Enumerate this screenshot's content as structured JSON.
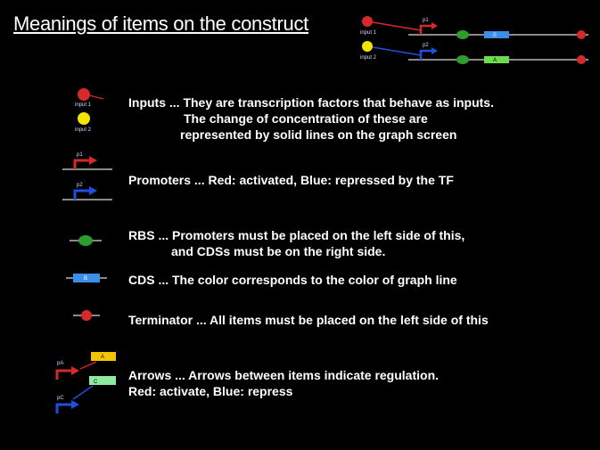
{
  "title": "Meanings of items on the construct",
  "construct_diagram": {
    "input1_label": "input 1",
    "input2_label": "input 2",
    "promoter1_label": "p1",
    "promoter2_label": "p2",
    "cds_top_label": "B",
    "cds_bottom_label": "A"
  },
  "legend": {
    "inputs": {
      "icon_input1_label": "input 1",
      "icon_input2_label": "input 2",
      "lines": [
        "Inputs ... They are transcription factors that behave as inputs.",
        "The change of concentration of these are",
        "represented by solid lines on the graph screen"
      ]
    },
    "promoters": {
      "icon_p1_label": "p1",
      "icon_p2_label": "p2",
      "text": "Promoters ... Red: activated, Blue: repressed by the TF"
    },
    "rbs": {
      "lines": [
        "RBS ... Promoters must be placed on the left side of this,",
        "and CDSs must be on the right side."
      ]
    },
    "cds": {
      "icon_label": "B",
      "text": "CDS ... The color corresponds to the color of graph line"
    },
    "terminator": {
      "text": "Terminator ... All items must be placed on the left side of this"
    },
    "arrows": {
      "icon_pa_label": "pA",
      "icon_pc_label": "pC",
      "icon_a_label": "A",
      "icon_c_label": "C",
      "lines": [
        "Arrows ... Arrows between items indicate regulation.",
        "Red: activate, Blue: repress"
      ]
    }
  },
  "colors": {
    "background": "#000000",
    "activator_red": "#d42a2a",
    "repressor_blue": "#1f4fe0",
    "input_yellow": "#f2e600",
    "rbs_green": "#2e9c2e",
    "cds_blue": "#3d8ee8",
    "cds_green": "#6bdc4a",
    "cds_yellow": "#f5c400",
    "cds_lightgreen": "#8fe8a0"
  }
}
